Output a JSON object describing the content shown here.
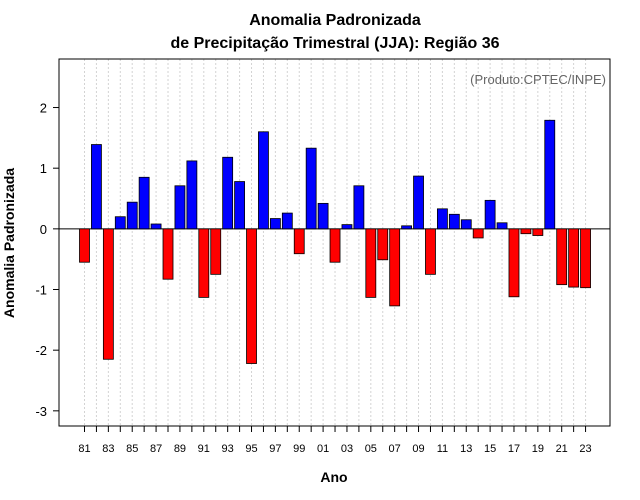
{
  "chart_data": {
    "type": "bar",
    "title_line1": "Anomalia Padronizada",
    "title_line2": "de Precipitação Trimestral (JJA): Região 36",
    "credit": "(Produto:CPTEC/INPE)",
    "xlabel": "Ano",
    "ylabel": "Anomalia Padronizada",
    "ylim": [
      -3.25,
      2.8
    ],
    "yticks": [
      -3,
      -2,
      -1,
      0,
      1,
      2
    ],
    "positive_color": "#0000ff",
    "negative_color": "#ff0000",
    "grid_color": "#d3d3d3",
    "categories": [
      "81",
      "82",
      "83",
      "84",
      "85",
      "86",
      "87",
      "88",
      "89",
      "90",
      "91",
      "92",
      "93",
      "94",
      "95",
      "96",
      "97",
      "98",
      "99",
      "00",
      "01",
      "02",
      "03",
      "04",
      "05",
      "06",
      "07",
      "08",
      "09",
      "10",
      "11",
      "12",
      "13",
      "14",
      "15",
      "16",
      "17",
      "18",
      "19",
      "20",
      "21",
      "22",
      "23"
    ],
    "tick_labels": [
      "81",
      "83",
      "85",
      "87",
      "89",
      "91",
      "93",
      "95",
      "97",
      "99",
      "01",
      "03",
      "05",
      "07",
      "09",
      "11",
      "13",
      "15",
      "17",
      "19",
      "21",
      "23"
    ],
    "values": [
      -0.55,
      1.39,
      -2.15,
      0.2,
      0.44,
      0.85,
      0.08,
      -0.83,
      0.71,
      1.12,
      -1.13,
      -0.75,
      1.18,
      0.78,
      -2.22,
      1.6,
      0.17,
      0.26,
      -0.41,
      1.33,
      0.42,
      -0.55,
      0.07,
      0.71,
      -1.13,
      -0.51,
      -1.27,
      0.05,
      0.87,
      -0.75,
      0.33,
      0.24,
      0.15,
      -0.15,
      0.47,
      0.1,
      -1.12,
      -0.08,
      -0.11,
      1.79,
      -0.92,
      -0.96,
      -0.97
    ]
  }
}
